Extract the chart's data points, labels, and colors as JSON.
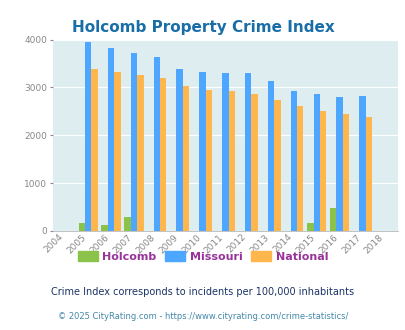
{
  "title": "Holcomb Property Crime Index",
  "years": [
    2004,
    2005,
    2006,
    2007,
    2008,
    2009,
    2010,
    2011,
    2012,
    2013,
    2014,
    2015,
    2016,
    2017,
    2018
  ],
  "holcomb": [
    0,
    175,
    135,
    290,
    0,
    0,
    0,
    0,
    0,
    0,
    0,
    160,
    490,
    0,
    0
  ],
  "missouri": [
    0,
    3950,
    3830,
    3720,
    3630,
    3380,
    3330,
    3310,
    3310,
    3130,
    2920,
    2860,
    2800,
    2830,
    0
  ],
  "national": [
    0,
    3390,
    3320,
    3260,
    3190,
    3040,
    2950,
    2920,
    2870,
    2730,
    2620,
    2500,
    2450,
    2380,
    0
  ],
  "bar_color_holcomb": "#8bc34a",
  "bar_color_missouri": "#4da6ff",
  "bar_color_national": "#ffb74d",
  "bg_color": "#deeef0",
  "fig_bg_color": "#ffffff",
  "ylim": [
    0,
    4000
  ],
  "yticks": [
    0,
    1000,
    2000,
    3000,
    4000
  ],
  "title_color": "#1a6ea8",
  "title_fontsize": 11,
  "legend_labels": [
    "Holcomb",
    "Missouri",
    "National"
  ],
  "legend_label_color": "#993399",
  "footnote1": "Crime Index corresponds to incidents per 100,000 inhabitants",
  "footnote2": "© 2025 CityRating.com - https://www.cityrating.com/crime-statistics/",
  "footnote1_color": "#1a3366",
  "footnote2_color": "#4488aa",
  "bar_width": 0.28,
  "xtick_color": "#888888",
  "ytick_color": "#888888",
  "grid_color": "#ffffff"
}
